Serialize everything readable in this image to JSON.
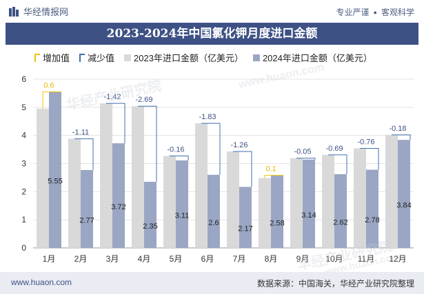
{
  "header": {
    "brand": "华经情报网",
    "slogan_left": "专业严谨",
    "slogan_dot": "●",
    "slogan_right": "客观科学"
  },
  "title": "2023-2024年中国氯化钾月度进口金额",
  "legend": {
    "increase": "增加值",
    "decrease": "减少值",
    "s2023": "2023年进口金额（亿美元）",
    "s2024": "2024年进口金额（亿美元）"
  },
  "watermark": {
    "cn": "华经产业研究院",
    "en": "www.huaon.com"
  },
  "footer": {
    "site": "www.huaon.com",
    "source": "数据来源：中国海关，华经产业研究院整理"
  },
  "colors": {
    "header_bar": "#3d5185",
    "bar_2023": "#d9d9d9",
    "bar_2024": "#9aa6c3",
    "increase": "#f2c200",
    "decrease": "#3d6fb0",
    "label_up": "#e6b400",
    "label_down": "#3d5185"
  },
  "chart_data": {
    "type": "bar",
    "categories": [
      "1月",
      "2月",
      "3月",
      "4月",
      "5月",
      "6月",
      "7月",
      "8月",
      "9月",
      "10月",
      "11月",
      "12月"
    ],
    "series": [
      {
        "name": "2023年进口金额（亿美元）",
        "values": [
          4.95,
          3.88,
          5.14,
          5.04,
          3.27,
          4.43,
          3.43,
          2.48,
          3.19,
          3.31,
          3.54,
          4.02
        ]
      },
      {
        "name": "2024年进口金额（亿美元）",
        "values": [
          5.55,
          2.77,
          3.72,
          2.35,
          3.11,
          2.6,
          2.17,
          2.58,
          3.14,
          2.62,
          2.78,
          3.84
        ]
      }
    ],
    "changes": [
      0.6,
      -1.11,
      -1.42,
      -2.69,
      -0.16,
      -1.83,
      -1.26,
      0.1,
      -0.05,
      -0.69,
      -0.76,
      -0.18
    ],
    "value_labels": [
      "5.55",
      "2.77",
      "3.72",
      "2.35",
      "3.11",
      "2.6",
      "2.17",
      "2.58",
      "3.14",
      "2.62",
      "2.78",
      "3.84"
    ],
    "yticks": [
      "0",
      "1",
      "2",
      "3",
      "4",
      "5",
      "6"
    ],
    "ylim": [
      0,
      6
    ],
    "grid": true
  }
}
